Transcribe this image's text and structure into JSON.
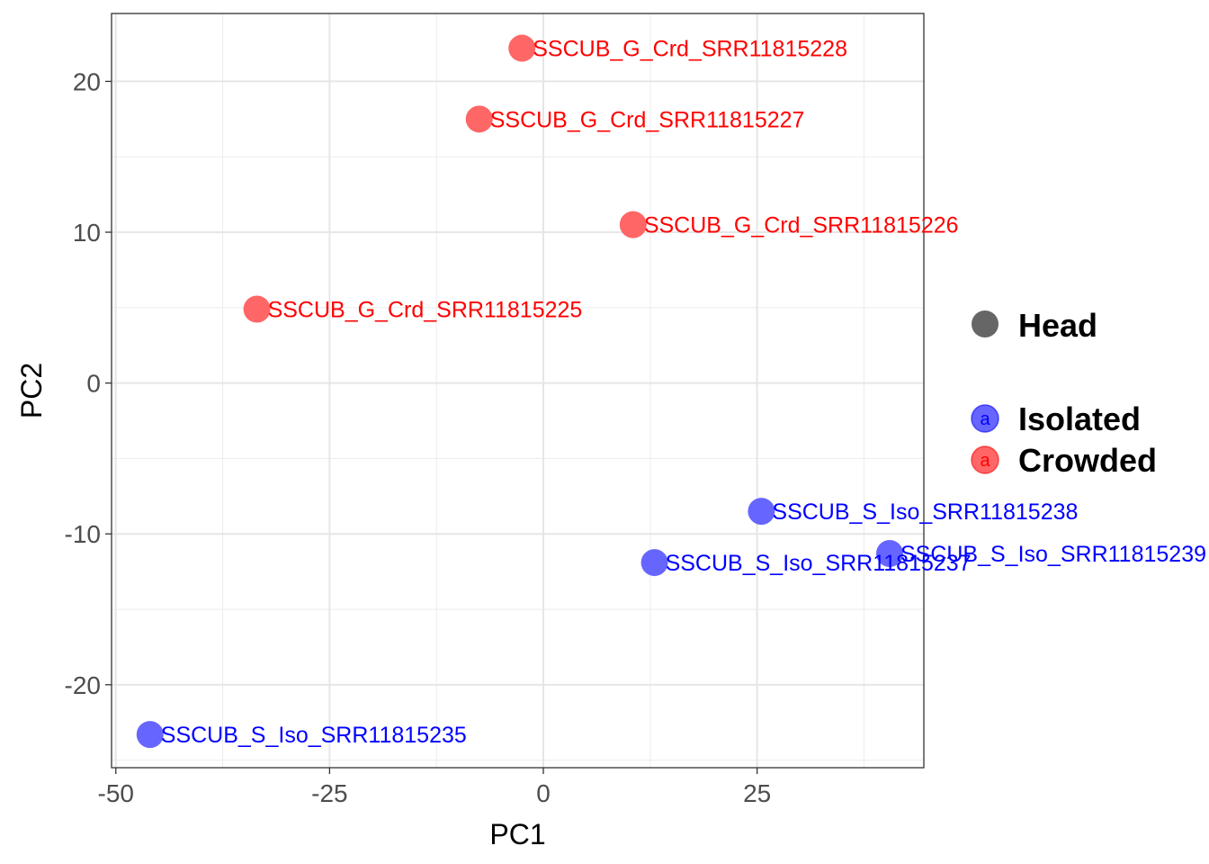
{
  "chart_data": {
    "type": "scatter",
    "xlabel": "PC1",
    "ylabel": "PC2",
    "xlim": [
      -50.5,
      44.5
    ],
    "ylim": [
      -25.5,
      24.5
    ],
    "x_ticks": [
      -50,
      -25,
      0,
      25
    ],
    "y_ticks": [
      -20,
      -10,
      0,
      10,
      20
    ],
    "x_tick_labels": [
      "-50",
      "-25",
      "0",
      "25"
    ],
    "y_tick_labels": [
      "-20",
      "-10",
      "0",
      "10",
      "20"
    ],
    "grid": true,
    "legend_position": "right",
    "shape_legend": {
      "label": "Head",
      "color": "#666666"
    },
    "series": [
      {
        "name": "Isolated",
        "color": "#6666ff",
        "label_color": "#0000ff",
        "points": [
          {
            "x": -46.0,
            "y": -23.3,
            "label": "SSCUB_S_Iso_SRR11815235"
          },
          {
            "x": 13.0,
            "y": -11.9,
            "label": "SSCUB_S_Iso_SRR11815237"
          },
          {
            "x": 25.5,
            "y": -8.5,
            "label": "SSCUB_S_Iso_SRR11815238"
          },
          {
            "x": 40.5,
            "y": -11.3,
            "label": "SSCUB_S_Iso_SRR11815239"
          }
        ]
      },
      {
        "name": "Crowded",
        "color": "#ff6666",
        "label_color": "#ff0000",
        "points": [
          {
            "x": -33.5,
            "y": 4.9,
            "label": "SSCUB_G_Crd_SRR11815225"
          },
          {
            "x": 10.5,
            "y": 10.5,
            "label": "SSCUB_G_Crd_SRR11815226"
          },
          {
            "x": -7.5,
            "y": 17.5,
            "label": "SSCUB_G_Crd_SRR11815227"
          },
          {
            "x": -2.5,
            "y": 22.2,
            "label": "SSCUB_G_Crd_SRR11815228"
          }
        ]
      }
    ],
    "legend_glyph": "a"
  }
}
